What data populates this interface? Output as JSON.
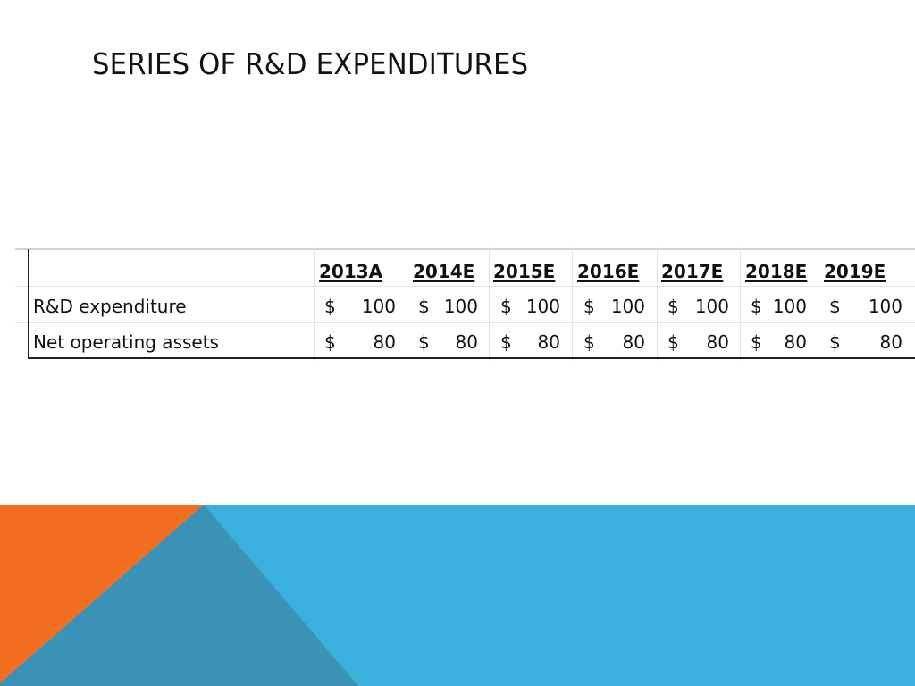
{
  "slide": {
    "title": "SERIES OF R&D EXPENDITURES"
  },
  "table": {
    "columns": [
      "2013A",
      "2014E",
      "2015E",
      "2016E",
      "2017E",
      "2018E",
      "2019E"
    ],
    "rows": [
      {
        "label": "R&D expenditure",
        "cells": [
          {
            "cur": "$",
            "val": "100"
          },
          {
            "cur": "$",
            "val": "100"
          },
          {
            "cur": "$",
            "val": "100"
          },
          {
            "cur": "$",
            "val": "100"
          },
          {
            "cur": "$",
            "val": "100"
          },
          {
            "cur": "$",
            "val": "100"
          },
          {
            "cur": "$",
            "val": "100"
          }
        ]
      },
      {
        "label": "Net operating assets",
        "cells": [
          {
            "cur": "$",
            "val": "80"
          },
          {
            "cur": "$",
            "val": "80"
          },
          {
            "cur": "$",
            "val": "80"
          },
          {
            "cur": "$",
            "val": "80"
          },
          {
            "cur": "$",
            "val": "80"
          },
          {
            "cur": "$",
            "val": "80"
          },
          {
            "cur": "$",
            "val": "80"
          }
        ]
      }
    ]
  },
  "colors": {
    "orange": "#f26f21",
    "blue": "#3ab0dd",
    "steel": "#3a92b6"
  }
}
